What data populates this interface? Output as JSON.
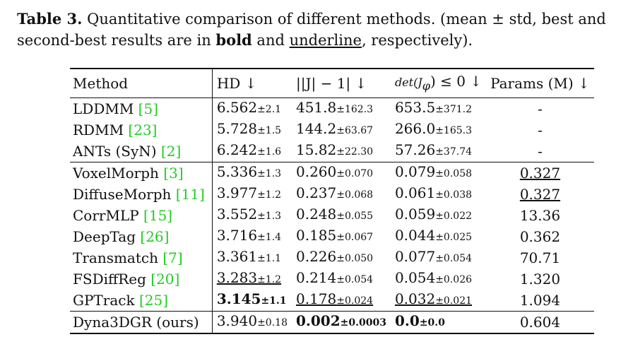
{
  "caption": {
    "label": "Table 3.",
    "text1": " Quantitative comparison of different methods. (mean ± std, best and second-best results are in ",
    "bold_word": "bold",
    "text2": " and ",
    "underline_word": "underline",
    "text3": ", respectively)."
  },
  "table": {
    "headers": {
      "method": "Method",
      "hd": "HD ↓",
      "jacobian": "||J| − 1| ↓",
      "det": "det(J",
      "det_sub": "φ",
      "det_tail": ") ≤ 0 ↓",
      "params": "Params (M) ↓"
    },
    "rows": [
      {
        "name": "LDDMM",
        "ref": "[5]",
        "hd": "6.562",
        "hd_sd": "±2.1",
        "jac": "451.8",
        "jac_sd": "±162.3",
        "det": "653.5",
        "det_sd": "±371.2",
        "params": "-"
      },
      {
        "name": "RDMM",
        "ref": "[23]",
        "hd": "5.728",
        "hd_sd": "±1.5",
        "jac": "144.2",
        "jac_sd": "±63.67",
        "det": "266.0",
        "det_sd": "±165.3",
        "params": "-"
      },
      {
        "name": "ANTs (SyN)",
        "ref": "[2]",
        "hd": "6.242",
        "hd_sd": "±1.6",
        "jac": "15.82",
        "jac_sd": "±22.30",
        "det": "57.26",
        "det_sd": "±37.74",
        "params": "-"
      },
      {
        "name": "VoxelMorph",
        "ref": "[3]",
        "hd": "5.336",
        "hd_sd": "±1.3",
        "jac": "0.260",
        "jac_sd": "±0.070",
        "det": "0.079",
        "det_sd": "±0.058",
        "params": "0.327"
      },
      {
        "name": "DiffuseMorph",
        "ref": "[11]",
        "hd": "3.977",
        "hd_sd": "±1.2",
        "jac": "0.237",
        "jac_sd": "±0.068",
        "det": "0.061",
        "det_sd": "±0.038",
        "params": "0.327"
      },
      {
        "name": "CorrMLP",
        "ref": "[15]",
        "hd": "3.552",
        "hd_sd": "±1.3",
        "jac": "0.248",
        "jac_sd": "±0.055",
        "det": "0.059",
        "det_sd": "±0.022",
        "params": "13.36"
      },
      {
        "name": "DeepTag",
        "ref": "[26]",
        "hd": "3.716",
        "hd_sd": "±1.4",
        "jac": "0.185",
        "jac_sd": "±0.067",
        "det": "0.044",
        "det_sd": "±0.025",
        "params": "0.362"
      },
      {
        "name": "Transmatch",
        "ref": "[7]",
        "hd": "3.361",
        "hd_sd": "±1.1",
        "jac": "0.226",
        "jac_sd": "±0.050",
        "det": "0.077",
        "det_sd": "±0.054",
        "params": "70.71"
      },
      {
        "name": "FSDiffReg",
        "ref": "[20]",
        "hd": "3.283",
        "hd_sd": "±1.2",
        "jac": "0.214",
        "jac_sd": "±0.054",
        "det": "0.054",
        "det_sd": "±0.026",
        "params": "1.320"
      },
      {
        "name": "GPTrack",
        "ref": "[25]",
        "hd": "3.145",
        "hd_sd": "±1.1",
        "jac": "0.178",
        "jac_sd": "±0.024",
        "det": "0.032",
        "det_sd": "±0.021",
        "params": "1.094"
      },
      {
        "name": "Dyna3DGR (ours)",
        "ref": "",
        "hd": "3.940",
        "hd_sd": "±0.18",
        "jac": "0.002",
        "jac_sd": "±0.0003",
        "det": "0.0",
        "det_sd": "±0.0",
        "params": "0.604"
      }
    ]
  }
}
